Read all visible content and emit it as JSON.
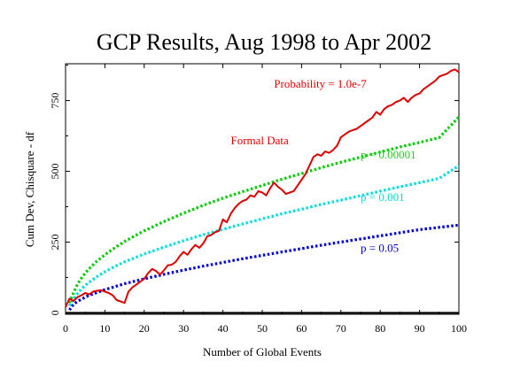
{
  "chart_data": {
    "type": "line",
    "title": "GCP Results, Aug 1998 to Apr 2002",
    "xlabel": "Number of Global Events",
    "ylabel": "Cum Dev, Chisquare - df",
    "xlim": [
      0,
      100
    ],
    "ylim": [
      -5,
      880
    ],
    "x_ticks": [
      0,
      10,
      20,
      30,
      40,
      50,
      60,
      70,
      80,
      90,
      100
    ],
    "y_ticks": [
      0,
      250,
      500,
      750
    ],
    "grid": false,
    "annotations": [
      {
        "text": "Probability = 1.0e-7",
        "color": "#dd0000",
        "x": 53,
        "y": 795
      },
      {
        "text": "Formal Data",
        "color": "#dd0000",
        "x": 42,
        "y": 595
      },
      {
        "text": "p = 0.00001",
        "color": "#22cc22",
        "x": 75,
        "y": 545
      },
      {
        "text": "p = 0.001",
        "color": "#00dddd",
        "x": 75,
        "y": 395
      },
      {
        "text": "p = 0.05",
        "color": "#0000bb",
        "x": 75,
        "y": 215
      }
    ],
    "series": [
      {
        "style": "dotted",
        "color": "#00cc00",
        "formula": "2.326*sqrt(2x)*... approx",
        "x": [
          1,
          2,
          3,
          4,
          5,
          6,
          8,
          10,
          12,
          15,
          20,
          25,
          30,
          35,
          40,
          45,
          50,
          55,
          60,
          65,
          70,
          75,
          80,
          85,
          90,
          95,
          100
        ],
        "values": [
          35,
          70,
          100,
          122,
          140,
          156,
          183,
          205,
          225,
          252,
          290,
          322,
          352,
          380,
          405,
          428,
          450,
          472,
          492,
          513,
          532,
          550,
          568,
          586,
          602,
          619,
          692
        ]
      },
      {
        "style": "dotted",
        "color": "#00dddd",
        "x": [
          1,
          2,
          3,
          4,
          5,
          6,
          8,
          10,
          12,
          15,
          20,
          25,
          30,
          35,
          40,
          45,
          50,
          55,
          60,
          65,
          70,
          75,
          80,
          85,
          90,
          95,
          100
        ],
        "values": [
          25,
          48,
          68,
          84,
          97,
          108,
          128,
          145,
          160,
          180,
          208,
          232,
          255,
          276,
          295,
          314,
          332,
          350,
          366,
          383,
          398,
          414,
          430,
          445,
          460,
          475,
          520
        ]
      },
      {
        "style": "dotted",
        "color": "#0000cc",
        "x": [
          1,
          2,
          3,
          4,
          5,
          6,
          8,
          10,
          12,
          15,
          20,
          25,
          30,
          35,
          40,
          45,
          50,
          55,
          60,
          65,
          70,
          75,
          80,
          85,
          90,
          95,
          100
        ],
        "values": [
          10,
          30,
          40,
          48,
          55,
          62,
          72,
          82,
          90,
          103,
          120,
          136,
          151,
          165,
          178,
          191,
          203,
          215,
          227,
          239,
          250,
          261,
          272,
          283,
          294,
          302,
          310
        ]
      },
      {
        "style": "solid",
        "color": "#dd0000",
        "x": [
          0,
          1,
          2,
          3,
          4,
          5,
          6,
          7,
          8,
          9,
          10,
          11,
          12,
          13,
          14,
          15,
          16,
          17,
          18,
          19,
          20,
          21,
          22,
          23,
          24,
          25,
          26,
          27,
          28,
          29,
          30,
          31,
          32,
          33,
          34,
          35,
          36,
          37,
          38,
          39,
          40,
          41,
          42,
          43,
          44,
          45,
          46,
          47,
          48,
          49,
          50,
          51,
          52,
          53,
          54,
          55,
          56,
          57,
          58,
          59,
          60,
          61,
          62,
          63,
          64,
          65,
          66,
          67,
          68,
          69,
          70,
          71,
          72,
          73,
          74,
          75,
          76,
          77,
          78,
          79,
          80,
          81,
          82,
          83,
          84,
          85,
          86,
          87,
          88,
          89,
          90,
          91,
          92,
          93,
          94,
          95,
          96,
          97,
          98,
          99,
          100
        ],
        "values": [
          20,
          50,
          42,
          55,
          62,
          70,
          65,
          75,
          78,
          80,
          75,
          70,
          62,
          45,
          40,
          35,
          75,
          90,
          100,
          110,
          120,
          140,
          155,
          148,
          135,
          150,
          168,
          170,
          180,
          200,
          215,
          205,
          225,
          240,
          230,
          245,
          270,
          275,
          285,
          290,
          330,
          320,
          350,
          370,
          385,
          395,
          400,
          415,
          410,
          430,
          425,
          415,
          440,
          460,
          445,
          435,
          420,
          425,
          430,
          450,
          470,
          490,
          520,
          550,
          560,
          555,
          570,
          565,
          575,
          590,
          620,
          630,
          640,
          645,
          650,
          660,
          670,
          680,
          690,
          710,
          700,
          720,
          730,
          735,
          745,
          750,
          760,
          745,
          760,
          770,
          775,
          790,
          800,
          810,
          820,
          835,
          840,
          845,
          855,
          860,
          850
        ]
      }
    ]
  }
}
